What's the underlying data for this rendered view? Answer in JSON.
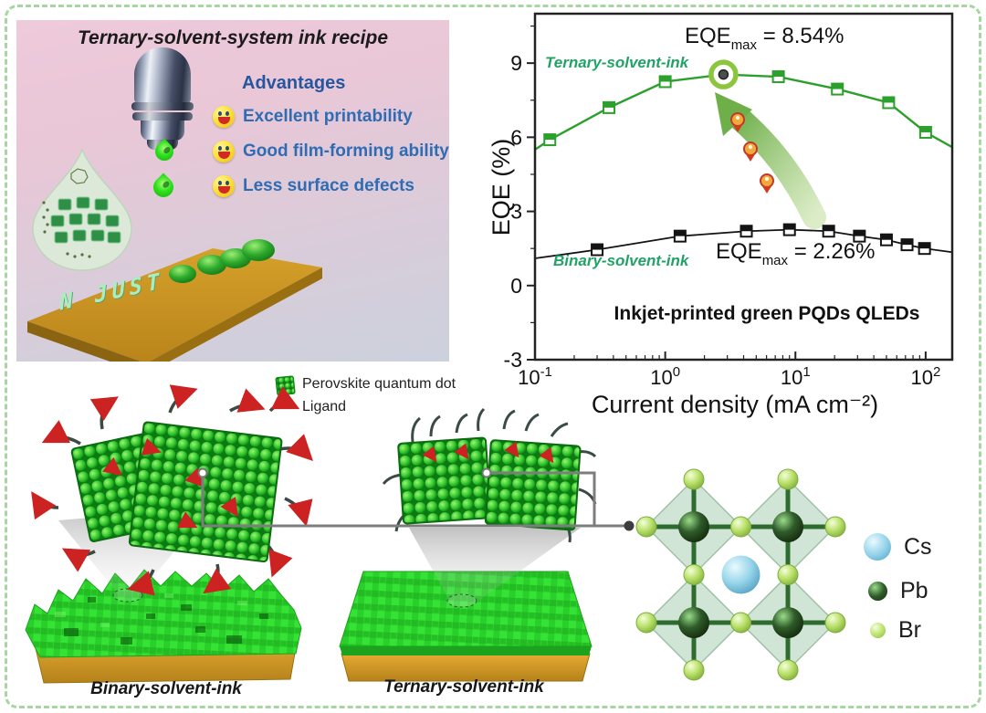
{
  "recipe_panel": {
    "title": "Ternary-solvent-system ink recipe",
    "advantages_heading": "Advantages",
    "advantages": [
      "Excellent printability",
      "Good film-forming ability",
      "Less surface defects"
    ],
    "substrate_text": "N JUST"
  },
  "chart_data": {
    "type": "line",
    "xlabel": "Current density (mA cm⁻²)",
    "ylabel": "EQE (%)",
    "xscale": "log",
    "xlim": [
      0.1,
      160
    ],
    "ylim": [
      -3,
      11
    ],
    "x_major_ticks": [
      0.1,
      1,
      10,
      100
    ],
    "y_major_ticks": [
      -3,
      0,
      3,
      6,
      9
    ],
    "grid": false,
    "legend_position": "inline-labels",
    "series": [
      {
        "name": "Ternary-solvent-ink",
        "color": "#2ca02c",
        "line_width": 2.4,
        "x": [
          0.1,
          0.13,
          0.37,
          1.0,
          2.8,
          7.4,
          21,
          52,
          100,
          160
        ],
        "y": [
          5.5,
          5.9,
          7.2,
          8.25,
          8.54,
          8.45,
          7.95,
          7.4,
          6.2,
          5.6
        ],
        "marker": "half-filled-square",
        "marker_start": 1,
        "marker_end": 8,
        "peak_index": 4
      },
      {
        "name": "Binary-solvent-ink",
        "color": "#141414",
        "line_width": 1.8,
        "x": [
          0.1,
          0.3,
          1.3,
          4.2,
          9,
          18,
          31,
          50,
          72,
          98,
          160
        ],
        "y": [
          1.1,
          1.45,
          2.0,
          2.2,
          2.26,
          2.2,
          2.0,
          1.85,
          1.65,
          1.5,
          1.35
        ],
        "marker": "half-filled-square",
        "marker_start": 1,
        "marker_end": 9
      }
    ],
    "annotations": {
      "ternary_series_label": "Ternary-solvent-ink",
      "binary_series_label": "Binary-solvent-ink",
      "eqe_max_ternary": {
        "name": "EQE",
        "sub": "max",
        "value": " = 8.54%"
      },
      "eqe_max_binary": {
        "name": "EQE",
        "sub": "max",
        "value": " = 2.26%"
      },
      "caption": "Inkjet-printed green PQDs QLEDs"
    }
  },
  "bottom": {
    "legend": {
      "qd_label": "Perovskite quantum dot",
      "ligand_label": "Ligand"
    },
    "binary_film_label": "Binary-solvent-ink",
    "ternary_film_label": "Ternary-solvent-ink",
    "crystal_legend": [
      {
        "label": "Cs",
        "color": "#8fd0e8"
      },
      {
        "label": "Pb",
        "color": "#2f5c2a"
      },
      {
        "label": "Br",
        "color": "#b8e069"
      }
    ]
  },
  "colors": {
    "accent_green": "#2ca02c",
    "series_label_green": "#21a366",
    "text_blue": "#2e6cb4",
    "border_green": "#a6d7a1",
    "substrate_gold": "#cf9a25",
    "film_green": "#2bcf2b"
  }
}
